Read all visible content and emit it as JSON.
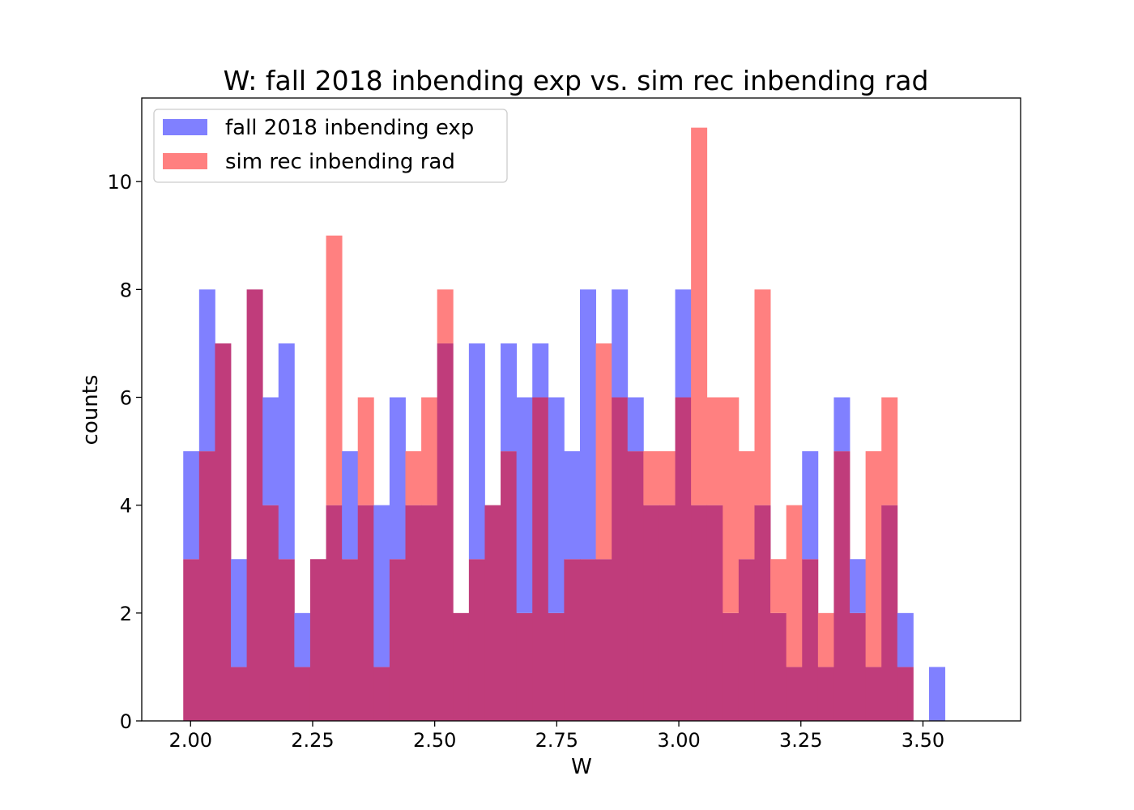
{
  "chart_data": {
    "type": "bar",
    "title": "W: fall 2018 inbending exp  vs. sim rec inbending rad",
    "xlabel": "W",
    "ylabel": "counts",
    "xlim": [
      1.9,
      3.7
    ],
    "ylim": [
      0,
      11.55
    ],
    "x_ticks": [
      "2.00",
      "2.25",
      "2.50",
      "2.75",
      "3.00",
      "3.25",
      "3.50"
    ],
    "y_ticks": [
      "0",
      "2",
      "4",
      "6",
      "8",
      "10"
    ],
    "bin_start": 1.985,
    "bin_width": 0.0325,
    "grid": false,
    "legend_position": "top-left",
    "overlap_color": "#c03c7b",
    "series": [
      {
        "name": "fall 2018 inbending exp",
        "color": "#8080ff",
        "values": [
          5,
          8,
          7,
          3,
          8,
          6,
          7,
          2,
          3,
          4,
          5,
          4,
          4,
          6,
          4,
          4,
          7,
          2,
          7,
          4,
          7,
          6,
          7,
          6,
          5,
          8,
          3,
          8,
          6,
          4,
          4,
          8,
          4,
          4,
          2,
          3,
          4,
          2,
          1,
          5,
          1,
          6,
          3,
          1,
          4,
          2,
          0,
          1
        ]
      },
      {
        "name": "sim rec inbending rad",
        "color": "#ff8080",
        "values": [
          3,
          5,
          7,
          1,
          8,
          4,
          3,
          1,
          3,
          9,
          3,
          6,
          1,
          3,
          5,
          6,
          8,
          2,
          3,
          4,
          5,
          2,
          6,
          2,
          3,
          3,
          7,
          6,
          5,
          5,
          5,
          6,
          11,
          6,
          6,
          5,
          8,
          3,
          4,
          3,
          2,
          5,
          2,
          5,
          6,
          1,
          0,
          0
        ]
      }
    ]
  }
}
